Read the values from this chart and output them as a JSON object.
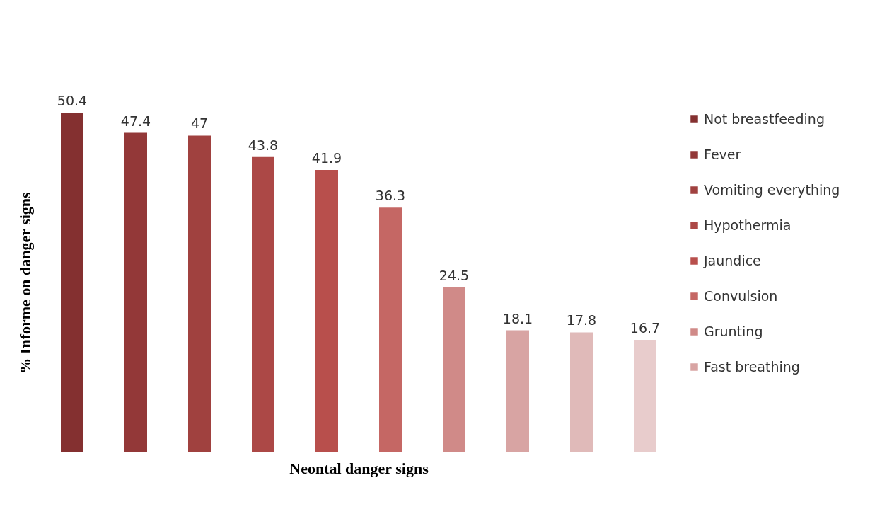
{
  "chart_data": {
    "type": "bar",
    "xlabel": "Neontal danger signs",
    "ylabel": "%  Informe on danger signs",
    "categories": [
      null,
      null,
      null,
      null,
      null,
      null,
      null,
      null,
      null,
      null
    ],
    "stacked": true,
    "series": [
      {
        "name": "Not breastfeeding",
        "color": "#843030",
        "values": [
          50.4,
          null,
          null,
          null,
          null,
          null,
          null,
          null,
          null,
          null
        ]
      },
      {
        "name": "Fever",
        "color": "#933838",
        "values": [
          null,
          47.4,
          null,
          null,
          null,
          null,
          null,
          null,
          null,
          null
        ]
      },
      {
        "name": "Vomiting everything",
        "color": "#a0413f",
        "values": [
          null,
          null,
          47,
          null,
          null,
          null,
          null,
          null,
          null,
          null
        ]
      },
      {
        "name": "Hypothermia",
        "color": "#ac4846",
        "values": [
          null,
          null,
          null,
          43.8,
          null,
          null,
          null,
          null,
          null,
          null
        ]
      },
      {
        "name": "Jaundice",
        "color": "#b84f4c",
        "values": [
          null,
          null,
          null,
          null,
          41.9,
          null,
          null,
          null,
          null,
          null
        ]
      },
      {
        "name": "Convulsion",
        "color": "#c56764",
        "values": [
          null,
          null,
          null,
          null,
          null,
          36.3,
          null,
          null,
          null,
          null
        ]
      },
      {
        "name": "Grunting",
        "color": "#d08a88",
        "values": [
          null,
          null,
          null,
          null,
          null,
          null,
          24.5,
          null,
          null,
          null
        ]
      },
      {
        "name": "Fast breathing",
        "color": "#d8a4a3",
        "values": [
          null,
          null,
          null,
          null,
          null,
          null,
          null,
          18.1,
          null,
          null
        ]
      },
      {
        "color": "#e0bab9",
        "values": [
          null,
          null,
          null,
          null,
          null,
          null,
          null,
          null,
          17.8,
          null
        ]
      },
      {
        "color": "#e8cccc",
        "values": [
          null,
          null,
          null,
          null,
          null,
          null,
          null,
          null,
          null,
          16.7
        ]
      }
    ],
    "data_labels": true,
    "legend": "right",
    "grid": false
  }
}
